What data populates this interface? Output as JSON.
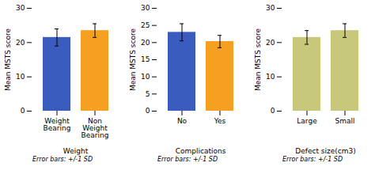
{
  "chart_data": [
    {
      "type": "bar",
      "categories": [
        "Weight Bearing",
        "Non Weight Bearing"
      ],
      "values": [
        21.5,
        23.5
      ],
      "errors": [
        2.5,
        2.0
      ],
      "colors": [
        "#3a5cbf",
        "#f5a020"
      ],
      "xlabel": "Weight",
      "ylabel": "Mean MSTS score",
      "ylim": [
        0,
        30
      ],
      "yticks": [
        0,
        10,
        20,
        30
      ],
      "annotations": [
        "Error bars: +/-1 SD"
      ]
    },
    {
      "type": "bar",
      "categories": [
        "No",
        "Yes"
      ],
      "values": [
        23.0,
        20.3
      ],
      "errors": [
        2.5,
        1.8
      ],
      "colors": [
        "#3a5cbf",
        "#f5a020"
      ],
      "xlabel": "Complications",
      "ylabel": "Mean MSTS score",
      "ylim": [
        0,
        30
      ],
      "yticks": [
        0,
        5,
        10,
        15,
        20,
        25,
        30
      ],
      "annotations": [
        "Error bars: +/-1 SD"
      ]
    },
    {
      "type": "bar",
      "categories": [
        "Large",
        "Small"
      ],
      "values": [
        21.5,
        23.5
      ],
      "errors": [
        2.0,
        2.0
      ],
      "colors": [
        "#c8c87a",
        "#c8c87a"
      ],
      "xlabel": "Defect size(cm3)",
      "ylabel": "Mean MSTS score",
      "ylim": [
        0,
        30
      ],
      "yticks": [
        0,
        10,
        20,
        30
      ],
      "annotations": [
        "Error bars: +/-1 SD"
      ]
    }
  ]
}
